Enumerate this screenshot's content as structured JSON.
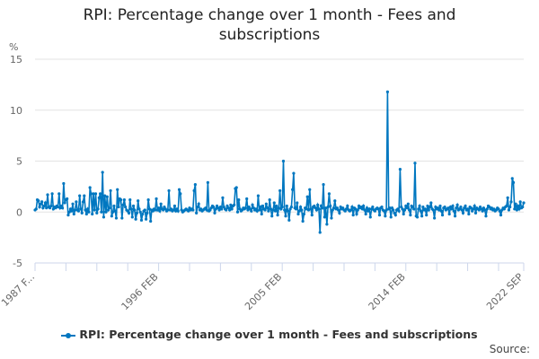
{
  "chart_data": {
    "type": "line",
    "title": "RPI: Percentage change over 1 month - Fees and subscriptions",
    "ylabel": "%",
    "xlabel": "",
    "x_start": "1987 FEB",
    "x_end": "2022 SEP",
    "frequency": "monthly",
    "x_tick_labels": [
      "1987 F...",
      "1996 FEB",
      "2005 FEB",
      "2014 FEB",
      "2022 SEP"
    ],
    "y_ticks": [
      15,
      10,
      5,
      0,
      -5
    ],
    "ylim": [
      -5,
      15
    ],
    "grid": "horizontal",
    "legend_position": "bottom",
    "color": "#0077c0",
    "series": [
      {
        "name": "RPI: Percentage change over 1 month - Fees and subscriptions",
        "values": [
          0.2,
          0.3,
          1.2,
          1.1,
          0.5,
          0.8,
          1.0,
          0.4,
          0.6,
          0.9,
          0.4,
          1.7,
          0.5,
          0.4,
          0.6,
          1.8,
          0.3,
          0.5,
          0.4,
          0.6,
          0.5,
          1.8,
          0.4,
          0.6,
          0.4,
          2.8,
          0.9,
          1.2,
          1.3,
          -0.3,
          0.0,
          0.3,
          0.1,
          0.8,
          -0.2,
          0.2,
          1.0,
          0.2,
          0.1,
          1.6,
          0.3,
          -0.1,
          1.0,
          1.6,
          0.2,
          -0.2,
          0.3,
          0.0,
          2.4,
          1.8,
          -0.2,
          1.8,
          0.2,
          1.8,
          -0.1,
          0.3,
          1.4,
          1.8,
          0.0,
          3.9,
          -0.5,
          1.6,
          0.0,
          1.5,
          0.2,
          0.4,
          2.1,
          -0.4,
          0.0,
          0.6,
          0.1,
          -0.6,
          2.2,
          0.5,
          1.3,
          1.2,
          -0.6,
          0.7,
          1.2,
          0.5,
          0.2,
          0.1,
          -0.1,
          1.2,
          0.3,
          -0.5,
          0.6,
          0.2,
          -0.7,
          -0.1,
          1.1,
          0.3,
          0.0,
          -0.8,
          -0.2,
          0.1,
          0.2,
          -0.7,
          -0.1,
          1.2,
          0.3,
          -0.9,
          0.2,
          0.1,
          0.3,
          0.2,
          1.3,
          0.2,
          0.4,
          0.1,
          0.8,
          0.3,
          0.2,
          0.5,
          0.3,
          0.1,
          0.2,
          2.1,
          0.2,
          0.3,
          0.1,
          0.2,
          0.6,
          0.1,
          0.3,
          0.1,
          2.2,
          1.8,
          0.2,
          0.0,
          0.1,
          0.2,
          0.3,
          0.2,
          0.1,
          0.4,
          0.2,
          0.3,
          0.2,
          2.1,
          2.7,
          -0.1,
          0.5,
          0.8,
          0.2,
          0.3,
          0.1,
          0.2,
          0.3,
          0.4,
          0.2,
          2.9,
          0.1,
          0.2,
          0.4,
          0.6,
          0.5,
          -0.1,
          0.3,
          0.6,
          0.4,
          0.2,
          0.5,
          0.3,
          1.4,
          0.5,
          0.3,
          0.2,
          0.6,
          0.4,
          0.2,
          0.7,
          0.3,
          0.6,
          0.7,
          2.3,
          2.4,
          0.0,
          1.2,
          0.3,
          0.1,
          0.2,
          0.4,
          0.3,
          0.4,
          1.3,
          0.2,
          0.5,
          0.3,
          0.1,
          0.7,
          0.4,
          0.2,
          0.3,
          0.1,
          1.6,
          0.2,
          0.5,
          -0.2,
          0.6,
          0.3,
          0.2,
          0.8,
          0.4,
          0.1,
          1.2,
          0.3,
          -0.4,
          0.2,
          0.9,
          0.1,
          0.6,
          -0.3,
          0.4,
          2.1,
          0.3,
          0.5,
          5.0,
          0.2,
          -0.4,
          0.6,
          0.1,
          -0.8,
          0.3,
          0.5,
          2.2,
          3.8,
          0.4,
          0.3,
          0.9,
          -0.2,
          0.1,
          0.5,
          0.2,
          -0.9,
          -0.2,
          0.4,
          0.3,
          1.5,
          0.2,
          2.2,
          0.3,
          -0.3,
          0.5,
          0.6,
          0.4,
          0.2,
          0.7,
          0.3,
          -2.0,
          0.6,
          0.4,
          2.7,
          -0.5,
          0.4,
          -1.2,
          0.5,
          1.8,
          0.6,
          -0.6,
          0.2,
          0.4,
          1.1,
          0.3,
          0.4,
          0.2,
          -0.1,
          0.5,
          0.3,
          0.4,
          0.2,
          0.1,
          0.3,
          0.6,
          0.2,
          0.1,
          0.2,
          0.5,
          -0.3,
          0.4,
          0.3,
          -0.2,
          0.2,
          0.6,
          0.4,
          0.5,
          0.3,
          0.6,
          0.2,
          -0.2,
          0.4,
          0.1,
          0.3,
          -0.5,
          0.3,
          0.5,
          0.2,
          0.1,
          0.3,
          0.4,
          0.3,
          -0.3,
          0.4,
          0.5,
          0.2,
          0.1,
          -0.4,
          0.2,
          11.8,
          0.3,
          0.4,
          -0.5,
          0.4,
          0.2,
          -0.1,
          -0.3,
          0.2,
          0.3,
          0.1,
          4.2,
          0.5,
          0.3,
          -0.2,
          0.2,
          0.6,
          0.4,
          0.8,
          0.2,
          -0.3,
          0.6,
          0.5,
          0.3,
          4.8,
          -0.4,
          -0.5,
          0.3,
          0.6,
          0.1,
          -0.4,
          0.5,
          0.2,
          0.3,
          -0.3,
          0.6,
          0.2,
          0.5,
          0.9,
          0.3,
          0.2,
          -0.6,
          0.5,
          0.3,
          0.4,
          0.2,
          0.6,
          0.1,
          -0.3,
          0.4,
          0.5,
          0.2,
          0.3,
          0.4,
          -0.2,
          0.5,
          0.3,
          0.6,
          0.1,
          -0.4,
          0.4,
          0.7,
          0.2,
          0.3,
          0.5,
          0.2,
          -0.1,
          0.4,
          0.6,
          0.2,
          0.3,
          -0.2,
          0.5,
          0.4,
          0.1,
          0.3,
          0.6,
          -0.1,
          0.4,
          0.3,
          0.2,
          0.5,
          0.3,
          0.1,
          0.4,
          0.2,
          -0.4,
          0.3,
          0.6,
          0.5,
          0.3,
          0.4,
          0.2,
          0.3,
          0.1,
          0.2,
          0.4,
          0.3,
          0.1,
          -0.3,
          0.2,
          0.4,
          0.3,
          0.5,
          0.6,
          1.4,
          0.2,
          0.5,
          1.0,
          3.3,
          2.9,
          0.3,
          0.8,
          0.2,
          0.6,
          0.3,
          1.0,
          0.4,
          0.5,
          0.9
        ]
      }
    ]
  },
  "source_label": "Source:"
}
